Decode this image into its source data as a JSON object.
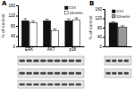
{
  "chart_data": [
    {
      "type": "bar",
      "title": "A",
      "ylabel": "% of control",
      "categories": [
        "ERK",
        "AKT",
        "p38"
      ],
      "series": [
        {
          "name": "Ctrl",
          "color": "#111111",
          "values": [
            100,
            100,
            100
          ],
          "errors": [
            8,
            6,
            7
          ]
        },
        {
          "name": "Ghrelin",
          "color": "#ffffff",
          "values": [
            92,
            62,
            104
          ],
          "errors": [
            7,
            6,
            7
          ]
        }
      ],
      "ylim": [
        0,
        160
      ],
      "yticks": [
        0,
        40,
        80,
        120,
        160
      ],
      "legend": "top-right"
    },
    {
      "type": "bar",
      "title": "B",
      "ylabel": "% of control",
      "categories": [
        null
      ],
      "series": [
        {
          "name": "Ctrl",
          "color": "#111111",
          "values": [
            100
          ],
          "errors": [
            5
          ]
        },
        {
          "name": "Ghrelin",
          "color": "#999999",
          "values": [
            82
          ],
          "errors": [
            6
          ]
        }
      ],
      "ylim": [
        0,
        160
      ],
      "yticks": [
        0,
        40,
        80,
        120,
        160
      ],
      "legend": "top-right"
    }
  ]
}
